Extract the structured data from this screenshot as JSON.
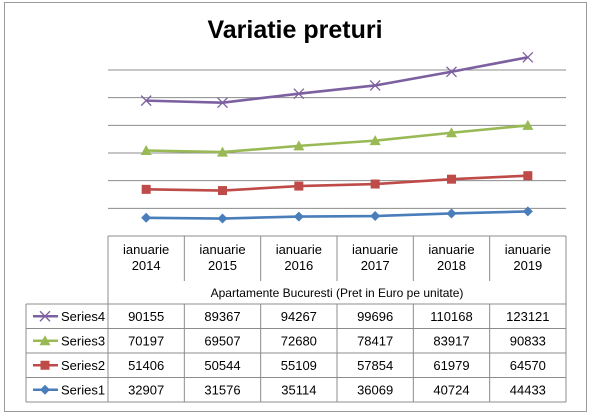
{
  "chart_data": {
    "type": "line",
    "title": "Variatie preturi",
    "xlabel": "Apartamente Bucuresti (Pret in Euro pe unitate)",
    "categories": [
      [
        "ianuarie",
        "2014"
      ],
      [
        "ianuarie",
        "2015"
      ],
      [
        "ianuarie",
        "2016"
      ],
      [
        "ianuarie",
        "2017"
      ],
      [
        "ianuarie",
        "2018"
      ],
      [
        "ianuarie",
        "2019"
      ]
    ],
    "series": [
      {
        "name": "Series1",
        "values": [
          32907,
          31576,
          35114,
          36069,
          40724,
          44433
        ],
        "color": "#4a7ebb",
        "marker": "diamond"
      },
      {
        "name": "Series2",
        "values": [
          51406,
          50544,
          55109,
          57854,
          61979,
          64570
        ],
        "color": "#be4b48",
        "marker": "square"
      },
      {
        "name": "Series3",
        "values": [
          70197,
          69507,
          72680,
          78417,
          83917,
          90833
        ],
        "color": "#98b954",
        "marker": "triangle"
      },
      {
        "name": "Series4",
        "values": [
          90155,
          89367,
          94267,
          99696,
          110168,
          123121
        ],
        "color": "#7d60a0",
        "marker": "x"
      }
    ],
    "table_order": [
      "Series4",
      "Series3",
      "Series2",
      "Series1"
    ],
    "stacked": true,
    "ylim": [
      0,
      300000
    ],
    "y_gridline_step": 50000,
    "y_axis_labels_shown": false,
    "grid": true,
    "legend": "data-table"
  }
}
